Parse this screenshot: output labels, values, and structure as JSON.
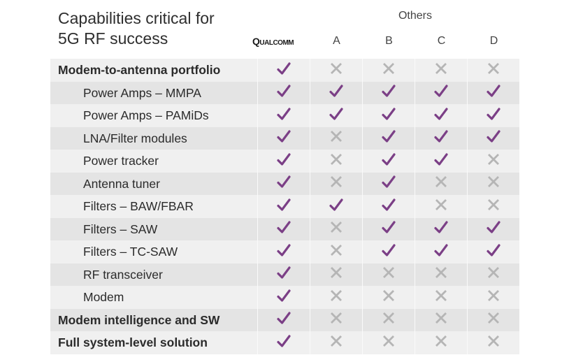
{
  "title": {
    "line1": "Capabilities critical for",
    "line2": "5G RF success"
  },
  "others_label": "Others",
  "columns": [
    {
      "key": "qualcomm",
      "label": "Qualcomm"
    },
    {
      "key": "A",
      "label": "A"
    },
    {
      "key": "B",
      "label": "B"
    },
    {
      "key": "C",
      "label": "C"
    },
    {
      "key": "D",
      "label": "D"
    }
  ],
  "colors": {
    "check": "#7b3f86",
    "cross": "#b5b5b5",
    "row_odd": "#f0f0f0",
    "row_even": "#e4e4e4"
  },
  "rows": [
    {
      "label": "Modem-to-antenna portfolio",
      "style": "bold",
      "values": [
        "check",
        "cross",
        "cross",
        "cross",
        "cross"
      ]
    },
    {
      "label": "Power Amps – MMPA",
      "style": "sub",
      "values": [
        "check",
        "check",
        "check",
        "check",
        "check"
      ]
    },
    {
      "label": "Power Amps – PAMiDs",
      "style": "sub",
      "values": [
        "check",
        "check",
        "check",
        "check",
        "check"
      ]
    },
    {
      "label": "LNA/Filter modules",
      "style": "sub",
      "values": [
        "check",
        "cross",
        "check",
        "check",
        "check"
      ]
    },
    {
      "label": "Power tracker",
      "style": "sub",
      "values": [
        "check",
        "cross",
        "check",
        "check",
        "cross"
      ]
    },
    {
      "label": "Antenna tuner",
      "style": "sub",
      "values": [
        "check",
        "cross",
        "check",
        "cross",
        "cross"
      ]
    },
    {
      "label": "Filters – BAW/FBAR",
      "style": "sub",
      "values": [
        "check",
        "check",
        "check",
        "cross",
        "cross"
      ]
    },
    {
      "label": "Filters – SAW",
      "style": "sub",
      "values": [
        "check",
        "cross",
        "check",
        "check",
        "check"
      ]
    },
    {
      "label": "Filters – TC-SAW",
      "style": "sub",
      "values": [
        "check",
        "cross",
        "check",
        "check",
        "check"
      ]
    },
    {
      "label": "RF transceiver",
      "style": "sub",
      "values": [
        "check",
        "cross",
        "cross",
        "cross",
        "cross"
      ]
    },
    {
      "label": "Modem",
      "style": "sub",
      "values": [
        "check",
        "cross",
        "cross",
        "cross",
        "cross"
      ]
    },
    {
      "label": "Modem intelligence and SW",
      "style": "bold",
      "values": [
        "check",
        "cross",
        "cross",
        "cross",
        "cross"
      ]
    },
    {
      "label": "Full system-level solution",
      "style": "bold",
      "values": [
        "check",
        "cross",
        "cross",
        "cross",
        "cross"
      ]
    }
  ]
}
